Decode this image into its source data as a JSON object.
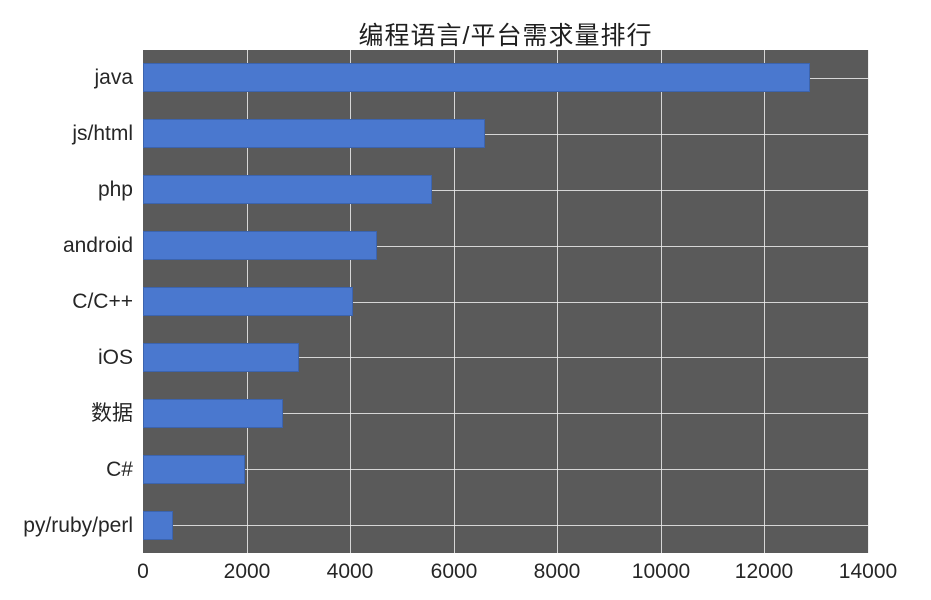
{
  "figure": {
    "background_color": "#ffffff",
    "plot_background_color": "#5A5A5A",
    "gridline_color": "#ECECEC",
    "bar_color": "#4A78CF",
    "bar_border_color": "#3C64AE",
    "text_color": "#262626"
  },
  "chart_data": {
    "type": "bar",
    "orientation": "horizontal",
    "title": "编程语言/平台需求量排行",
    "categories": [
      "java",
      "js/html",
      "php",
      "android",
      "C/C++",
      "iOS",
      "数据",
      "C#",
      "py/ruby/perl"
    ],
    "values": [
      12880,
      6600,
      5580,
      4520,
      4060,
      3010,
      2700,
      1960,
      580
    ],
    "xlabel": "",
    "ylabel": "",
    "xlim": [
      0,
      14000
    ],
    "x_ticks": [
      0,
      2000,
      4000,
      6000,
      8000,
      10000,
      12000,
      14000
    ],
    "x_tick_labels": [
      "0",
      "2000",
      "4000",
      "6000",
      "8000",
      "10000",
      "12000",
      "14000"
    ],
    "grid": "both",
    "legend_position": "none"
  }
}
